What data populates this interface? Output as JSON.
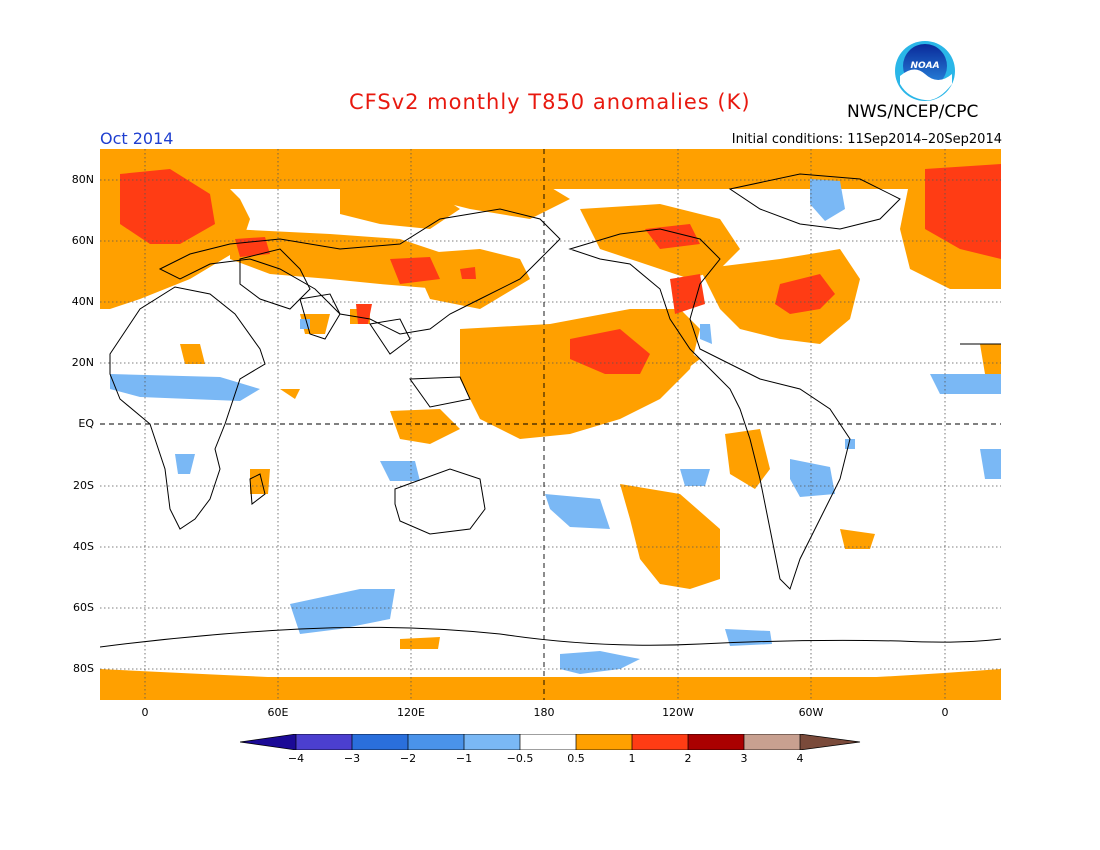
{
  "title": "CFSv2 monthly T850 anomalies (K)",
  "agency": "NWS/NCEP/CPC",
  "logo_text": "NOAA",
  "valid_month": "Oct 2014",
  "initial_conditions": "Initial conditions: 11Sep2014–20Sep2014",
  "lat_labels": [
    "80N",
    "60N",
    "40N",
    "20N",
    "EQ",
    "20S",
    "40S",
    "60S",
    "80S"
  ],
  "lon_labels": [
    "0",
    "60E",
    "120E",
    "180",
    "120W",
    "60W",
    "0"
  ],
  "colorbar": {
    "labels": [
      "−4",
      "−3",
      "−2",
      "−1",
      "−0.5",
      "0.5",
      "1",
      "2",
      "3",
      "4"
    ],
    "colors": [
      "#1b0a96",
      "#4b3fcf",
      "#2a6fdc",
      "#4a93ea",
      "#7ab8f5",
      "#ffffff",
      "#ffa000",
      "#ff3c14",
      "#aa0000",
      "#c8a090",
      "#7a4a3a"
    ]
  }
}
